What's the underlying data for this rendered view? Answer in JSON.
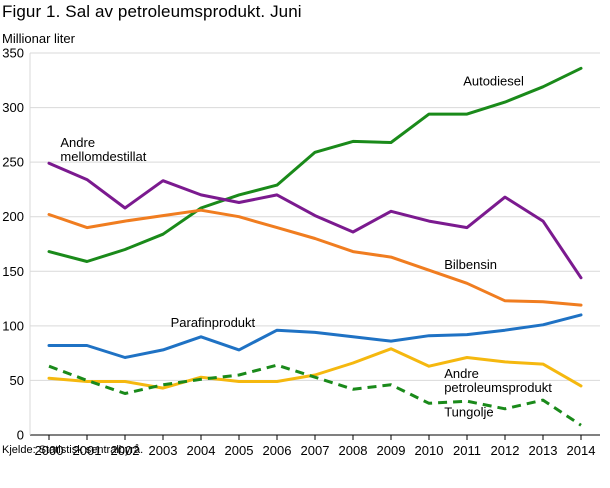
{
  "title": "Figur 1. Sal av petroleumsprodukt. Juni",
  "source": "Kjelde: Statistisk sentralbyrå.",
  "chart_data": {
    "type": "line",
    "title": "Figur 1. Sal av petroleumsprodukt. Juni",
    "ylabel": "Millionar liter",
    "xlabel": "",
    "ylim": [
      0,
      350
    ],
    "yticks": [
      0,
      50,
      100,
      150,
      200,
      250,
      300,
      350
    ],
    "x": [
      2000,
      2001,
      2002,
      2003,
      2004,
      2005,
      2006,
      2007,
      2008,
      2009,
      2010,
      2011,
      2012,
      2013,
      2014
    ],
    "grid": true,
    "legend": "inline labels",
    "series": [
      {
        "name": "Autodiesel",
        "color": "#1a8a1a",
        "dashed": false,
        "values": [
          168,
          159,
          170,
          184,
          208,
          220,
          229,
          259,
          269,
          268,
          294,
          294,
          305,
          319,
          336
        ]
      },
      {
        "name": "Andre mellomdestillat",
        "color": "#7b1a8f",
        "dashed": false,
        "values": [
          249,
          234,
          208,
          233,
          220,
          213,
          220,
          201,
          186,
          205,
          196,
          190,
          218,
          196,
          144
        ]
      },
      {
        "name": "Bilbensin",
        "color": "#f07d20",
        "dashed": false,
        "values": [
          202,
          190,
          196,
          201,
          206,
          200,
          190,
          180,
          168,
          163,
          151,
          139,
          123,
          122,
          119
        ]
      },
      {
        "name": "Parafinprodukt",
        "color": "#1f72c4",
        "dashed": false,
        "values": [
          82,
          82,
          71,
          78,
          90,
          78,
          96,
          94,
          90,
          86,
          91,
          92,
          96,
          101,
          110
        ]
      },
      {
        "name": "Andre petroleumsprodukt",
        "color": "#f5b80f",
        "dashed": false,
        "values": [
          52,
          49,
          49,
          43,
          53,
          49,
          49,
          55,
          66,
          79,
          63,
          71,
          67,
          65,
          45
        ]
      },
      {
        "name": "Tungolje",
        "color": "#1a8a1a",
        "dashed": true,
        "values": [
          63,
          50,
          38,
          46,
          51,
          55,
          64,
          53,
          42,
          46,
          29,
          31,
          24,
          32,
          9
        ]
      }
    ],
    "labels": [
      {
        "lines": [
          "Autodiesel"
        ],
        "x": 2010.9,
        "y": 320
      },
      {
        "lines": [
          "Andre",
          "mellomdestillat"
        ],
        "x": 2000.3,
        "y": 264
      },
      {
        "lines": [
          "Bilbensin"
        ],
        "x": 2010.4,
        "y": 152
      },
      {
        "lines": [
          "Parafinprodukt"
        ],
        "x": 2003.2,
        "y": 99
      },
      {
        "lines": [
          "Andre",
          "petroleumsprodukt"
        ],
        "x": 2010.4,
        "y": 52
      },
      {
        "lines": [
          "Tungolje"
        ],
        "x": 2010.4,
        "y": 17
      }
    ]
  }
}
